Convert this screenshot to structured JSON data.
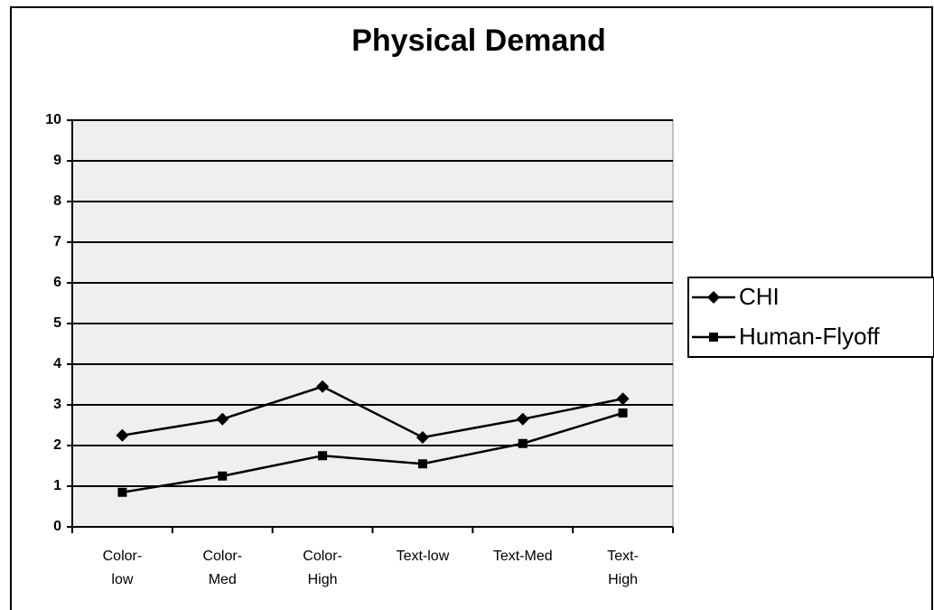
{
  "chart_data": {
    "type": "line",
    "title": "Physical Demand",
    "categories": [
      "Color-\nlow",
      "Color-\nMed",
      "Color-\nHigh",
      "Text-low",
      "Text-Med",
      "Text-\nHigh"
    ],
    "series": [
      {
        "name": "CHI",
        "color": "#000000",
        "marker": "diamond",
        "values": [
          2.25,
          2.65,
          3.45,
          2.2,
          2.65,
          3.15
        ]
      },
      {
        "name": "Human-Flyoff",
        "color": "#000000",
        "marker": "square",
        "values": [
          0.85,
          1.25,
          1.75,
          1.55,
          2.05,
          2.8
        ]
      }
    ],
    "ylim": [
      0,
      10
    ],
    "yticks": [
      0,
      1,
      2,
      3,
      4,
      5,
      6,
      7,
      8,
      9,
      10
    ],
    "grid": true,
    "legend": "right"
  }
}
